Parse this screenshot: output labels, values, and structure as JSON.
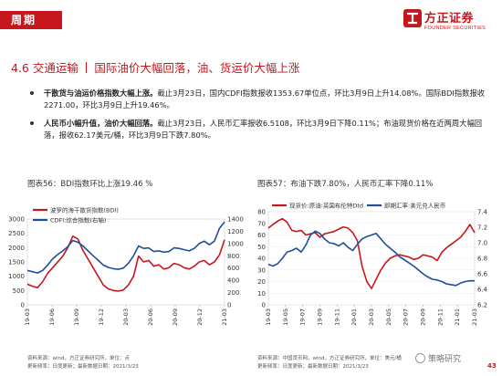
{
  "header": {
    "tab_label": "周期",
    "logo_cn": "方正证券",
    "logo_en": "FOUNDER SECURITIES"
  },
  "section": {
    "number_title": "4.6 交通运输",
    "subtitle": "国际油价大幅回落，油、货运价大幅上涨"
  },
  "bullets": [
    {
      "bold": "干散货与油运价格指数大幅上涨。",
      "text": "截止3月23日，国内CDFI指数报收1353.67单位点，环比3月9日上升14.08%。国际BDI指数报收2271.00，环比3月9日上升19.46%。"
    },
    {
      "bold": "人民币小幅升值，油价大幅回落。",
      "text": "截止3月23日，人民币汇率报收6.5108，环比3月9日下降0.11%；布油现货价格在近两周大幅回落，报收62.17美元/桶，环比3月9日下跌7.80%。"
    }
  ],
  "charts": [
    {
      "caption": "图表56：BDI指数环比上涨19.46 %",
      "source_line1": "资料来源：wind，方正证券研究所，单位：点",
      "source_line2": "更新频率：日度更新；最新数据日期：2021/3/23"
    },
    {
      "caption": "图表57：布油下跌7.80%，人民币汇率下降0.11%",
      "source_line1": "资料来源：中国货币网，wind，方正证券研究所，单位：美元/桶",
      "source_line2": "更新频率：日度更新；最新数据日期：2021/3/23"
    }
  ],
  "chart_data": [
    {
      "type": "line",
      "left_axis": {
        "ticks": [
          "0",
          "500",
          "1000",
          "1500",
          "2000",
          "2500",
          "3000"
        ],
        "ylim": [
          0,
          3000
        ]
      },
      "right_axis": {
        "ticks": [
          "0",
          "200",
          "400",
          "600",
          "800",
          "1000",
          "1200",
          "1400"
        ],
        "ylim": [
          0,
          1400
        ]
      },
      "x_ticks": [
        "19-03",
        "19-06",
        "19-09",
        "19-12",
        "20-03",
        "20-06",
        "20-09",
        "20-12",
        "21-03"
      ],
      "series": [
        {
          "name": "波罗的海干散货指数(BDI)",
          "axis": "left",
          "color": "#c8161d",
          "values": [
            720,
            650,
            600,
            800,
            1100,
            1300,
            1500,
            1700,
            2000,
            2400,
            2300,
            1900,
            1600,
            1300,
            1000,
            700,
            560,
            500,
            480,
            520,
            700,
            1000,
            1700,
            1500,
            1550,
            1350,
            1400,
            1250,
            1300,
            1450,
            1400,
            1300,
            1250,
            1350,
            1500,
            1550,
            1400,
            1500,
            1750,
            2271
          ]
        },
        {
          "name": "CDFI:综合指数(右轴)",
          "axis": "right",
          "color": "#1f4e9c",
          "values": [
            560,
            540,
            520,
            560,
            650,
            750,
            820,
            880,
            950,
            1050,
            1020,
            960,
            880,
            800,
            730,
            650,
            610,
            590,
            580,
            600,
            680,
            800,
            960,
            920,
            930,
            870,
            880,
            860,
            870,
            930,
            920,
            900,
            880,
            920,
            1000,
            1040,
            980,
            1040,
            1250,
            1354
          ]
        }
      ]
    },
    {
      "type": "line",
      "left_axis": {
        "ticks": [
          "0",
          "10",
          "20",
          "30",
          "40",
          "50",
          "60",
          "70",
          "80"
        ],
        "ylim": [
          0,
          80
        ]
      },
      "right_axis": {
        "ticks": [
          "6.2",
          "6.4",
          "6.6",
          "6.8",
          "7.0",
          "7.2",
          "7.4"
        ],
        "ylim": [
          6.2,
          7.4
        ]
      },
      "x_ticks": [
        "19-03",
        "19-05",
        "19-07",
        "19-09",
        "19-11",
        "20-01",
        "20-03",
        "20-05",
        "20-07",
        "20-09",
        "20-11",
        "21-01",
        "21-03"
      ],
      "series": [
        {
          "name": "现货价:原油:英国布伦特Dtd",
          "axis": "left",
          "color": "#c8161d",
          "values": [
            66,
            69,
            72,
            74,
            71,
            64,
            63,
            64,
            60,
            61,
            62,
            58,
            61,
            62,
            63,
            65,
            67,
            66,
            62,
            55,
            33,
            20,
            14,
            22,
            30,
            36,
            40,
            42,
            43,
            42,
            41,
            39,
            40,
            43,
            42,
            41,
            38,
            45,
            49,
            52,
            55,
            58,
            63,
            69,
            62
          ]
        },
        {
          "name": "即期汇率:美元兑人民币",
          "axis": "right",
          "color": "#1f4e9c",
          "values": [
            6.72,
            6.7,
            6.73,
            6.8,
            6.88,
            6.9,
            6.93,
            6.88,
            6.97,
            7.1,
            7.15,
            7.12,
            7.05,
            7.0,
            6.99,
            6.96,
            7.0,
            6.94,
            6.9,
            6.98,
            7.05,
            7.08,
            7.1,
            7.12,
            7.05,
            6.98,
            6.93,
            6.88,
            6.82,
            6.78,
            6.74,
            6.7,
            6.65,
            6.6,
            6.56,
            6.53,
            6.52,
            6.5,
            6.47,
            6.46,
            6.45,
            6.48,
            6.5,
            6.51,
            6.51
          ]
        }
      ]
    }
  ],
  "footer": {
    "watermark": "策略研究",
    "page_number": "43"
  }
}
